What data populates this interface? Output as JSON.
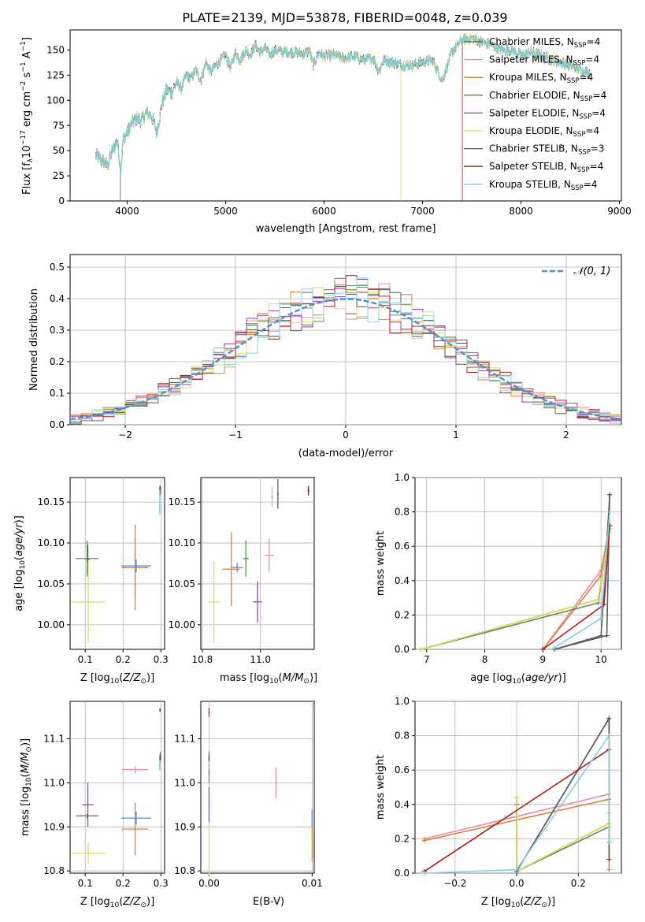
{
  "figure": {
    "title": "PLATE=2139, MJD=53878, FIBERID=0048, z=0.039"
  },
  "colors": [
    "#5c5c5c",
    "#e98aa8",
    "#d8802f",
    "#5e8a57",
    "#9f3ab6",
    "#d9e152",
    "#5a5a5a",
    "#b01c1c",
    "#7fd3df"
  ],
  "models": [
    {
      "name": "Chabrier MILES",
      "nssp": "4"
    },
    {
      "name": "Salpeter MILES",
      "nssp": "4"
    },
    {
      "name": "Kroupa MILES",
      "nssp": "4"
    },
    {
      "name": "Chabrier ELODIE",
      "nssp": "4"
    },
    {
      "name": "Salpeter ELODIE",
      "nssp": "4"
    },
    {
      "name": "Kroupa ELODIE",
      "nssp": "4"
    },
    {
      "name": "Chabrier STELIB",
      "nssp": "3"
    },
    {
      "name": "Salpeter STELIB",
      "nssp": "4"
    },
    {
      "name": "Kroupa STELIB",
      "nssp": "4"
    }
  ],
  "chart_data": [
    {
      "id": "spectrum",
      "type": "line",
      "xlabel": "wavelength [Angstrom, rest frame]",
      "ylabel": "Flux [f_λ 10^-17 erg cm^-2 s^-1 A^-1]",
      "xlim": [
        3420,
        9020
      ],
      "ylim": [
        0,
        170
      ],
      "xticks": [
        4000,
        5000,
        6000,
        7000,
        8000,
        9000
      ],
      "yticks": [
        0,
        25,
        50,
        75,
        100,
        125,
        150
      ],
      "grid": false,
      "legend": "upper right",
      "x": [
        3680,
        3750,
        3800,
        3850,
        3900,
        3935,
        3960,
        4000,
        4050,
        4100,
        4150,
        4200,
        4250,
        4300,
        4350,
        4400,
        4450,
        4500,
        4550,
        4600,
        4650,
        4700,
        4750,
        4800,
        4850,
        4900,
        4950,
        5000,
        5050,
        5100,
        5150,
        5200,
        5250,
        5300,
        5350,
        5400,
        5450,
        5500,
        5600,
        5700,
        5800,
        5850,
        5890,
        5950,
        6000,
        6100,
        6200,
        6300,
        6400,
        6500,
        6560,
        6600,
        6700,
        6800,
        6900,
        7000,
        7100,
        7200,
        7300,
        7400,
        7500,
        7600,
        7700,
        7800,
        7900,
        8000,
        8100,
        8200,
        8300,
        8400,
        8500,
        8600,
        8700
      ],
      "flux": [
        45,
        40,
        35,
        50,
        60,
        30,
        62,
        68,
        78,
        82,
        80,
        88,
        84,
        68,
        95,
        110,
        108,
        118,
        112,
        125,
        122,
        130,
        120,
        138,
        128,
        135,
        140,
        145,
        132,
        148,
        140,
        150,
        145,
        155,
        148,
        152,
        145,
        150,
        148,
        148,
        146,
        150,
        135,
        148,
        144,
        145,
        142,
        144,
        140,
        142,
        128,
        140,
        138,
        135,
        135,
        138,
        140,
        120,
        148,
        160,
        162,
        158,
        155,
        150,
        150,
        145,
        148,
        145,
        140,
        138,
        135,
        130,
        128
      ],
      "drops": [
        {
          "model": 6,
          "x": 3930
        },
        {
          "model": 5,
          "x": 6780
        },
        {
          "model": 7,
          "x": 7405
        }
      ]
    },
    {
      "id": "residual-histogram",
      "type": "step",
      "xlabel": "(data-model)/error",
      "ylabel": "Normed distribution",
      "xlim": [
        -2.5,
        2.5
      ],
      "ylim": [
        0,
        0.54
      ],
      "xticks": [
        -2,
        -1,
        0,
        1,
        2
      ],
      "yticks": [
        0.0,
        0.1,
        0.2,
        0.3,
        0.4,
        0.5
      ],
      "grid": true,
      "bin_width": 0.1,
      "reference_label": "N(0,1)",
      "reference_color": "#5b8bd6"
    },
    {
      "id": "age-vs-z",
      "type": "errorbar",
      "xlabel": "Z [log10(Z/Z⊙)]",
      "ylabel": "age [log10(age/yr)]",
      "xlim": [
        0.06,
        0.31
      ],
      "ylim": [
        9.97,
        10.18
      ],
      "xticks": [
        0.1,
        0.2,
        0.3
      ],
      "yticks": [
        10.0,
        10.05,
        10.1,
        10.15
      ],
      "grid": true,
      "points": [
        {
          "model": 0,
          "x": 0.298,
          "y": 10.165,
          "xe": 0.002,
          "ye": 0.005
        },
        {
          "model": 1,
          "x": 0.232,
          "y": 10.07,
          "xe": 0.035,
          "ye": 0.035
        },
        {
          "model": 2,
          "x": 0.232,
          "y": 10.07,
          "xe": 0.035,
          "ye": 0.052
        },
        {
          "model": 3,
          "x": 0.105,
          "y": 10.081,
          "xe": 0.03,
          "ye": 0.022
        },
        {
          "model": 4,
          "x": 0.107,
          "y": 10.08,
          "xe": 0.004,
          "ye": 0.018
        },
        {
          "model": 5,
          "x": 0.108,
          "y": 10.028,
          "xe": 0.045,
          "ye": 0.05
        },
        {
          "model": 6,
          "x": 0.299,
          "y": 10.163,
          "xe": 0.002,
          "ye": 0.004
        },
        {
          "model": 7,
          "x": 0.298,
          "y": 10.167,
          "xe": 0.002,
          "ye": 0.003
        },
        {
          "model": 8,
          "x": 0.297,
          "y": 10.15,
          "xe": 0.003,
          "ye": 0.015
        }
      ],
      "extra": [
        {
          "color": "#5b8bd6",
          "x": 0.235,
          "y": 10.072,
          "xe": 0.04,
          "ye": 0.008
        }
      ]
    },
    {
      "id": "age-vs-mass",
      "type": "errorbar",
      "xlabel": "mass [log10(M/M⊙)]",
      "xlim": [
        10.795,
        11.185
      ],
      "ylim": [
        9.97,
        10.18
      ],
      "xticks": [
        10.8,
        11.0
      ],
      "yticks": [
        10.0,
        10.05,
        10.1,
        10.15
      ],
      "grid": true,
      "points": [
        {
          "model": 0,
          "x": 11.165,
          "y": 10.163,
          "xe": 0.003,
          "ye": 0.005
        },
        {
          "model": 1,
          "x": 11.03,
          "y": 10.085,
          "xe": 0.015,
          "ye": 0.02
        },
        {
          "model": 2,
          "x": 10.9,
          "y": 10.068,
          "xe": 0.03,
          "ye": 0.045
        },
        {
          "model": 3,
          "x": 10.95,
          "y": 10.081,
          "xe": 0.01,
          "ye": 0.022
        },
        {
          "model": 4,
          "x": 10.99,
          "y": 10.028,
          "xe": 0.015,
          "ye": 0.025
        },
        {
          "model": 5,
          "x": 10.84,
          "y": 10.028,
          "xe": 0.02,
          "ye": 0.05
        },
        {
          "model": 6,
          "x": 11.06,
          "y": 10.16,
          "xe": 0.003,
          "ye": 0.018
        },
        {
          "model": 7,
          "x": 11.165,
          "y": 10.165,
          "xe": 0.003,
          "ye": 0.005
        },
        {
          "model": 8,
          "x": 11.04,
          "y": 10.157,
          "xe": 0.005,
          "ye": 0.012
        }
      ],
      "extra": [
        {
          "color": "#5b8bd6",
          "x": 10.92,
          "y": 10.07,
          "xe": 0.02,
          "ye": 0.006
        }
      ]
    },
    {
      "id": "weight-vs-age",
      "type": "line",
      "xlabel": "age [log10(age/yr)]",
      "ylabel": "mass weight",
      "xlim": [
        6.8,
        10.35
      ],
      "ylim": [
        0,
        1.0
      ],
      "xticks": [
        7,
        8,
        9,
        10
      ],
      "yticks": [
        0.0,
        0.2,
        0.4,
        0.6,
        0.8,
        1.0
      ],
      "grid": true,
      "series": [
        {
          "model": 0,
          "x": [
            9.2,
            10.0,
            10.15
          ],
          "y": [
            0.0,
            0.08,
            0.9
          ]
        },
        {
          "model": 1,
          "x": [
            9.0,
            10.0,
            10.15
          ],
          "y": [
            0.0,
            0.46,
            0.72
          ]
        },
        {
          "model": 2,
          "x": [
            9.0,
            10.0,
            10.15
          ],
          "y": [
            0.0,
            0.43,
            0.72
          ]
        },
        {
          "model": 3,
          "x": [
            6.9,
            9.95,
            10.15
          ],
          "y": [
            0.0,
            0.27,
            0.72
          ]
        },
        {
          "model": 4,
          "x": [
            6.9,
            9.95,
            10.15
          ],
          "y": [
            0.0,
            0.29,
            0.7
          ]
        },
        {
          "model": 5,
          "x": [
            6.9,
            9.95,
            10.15
          ],
          "y": [
            0.0,
            0.29,
            0.7
          ]
        },
        {
          "model": 6,
          "x": [
            9.2,
            10.1,
            10.15
          ],
          "y": [
            0.0,
            0.08,
            0.9
          ]
        },
        {
          "model": 7,
          "x": [
            9.0,
            10.05,
            10.15
          ],
          "y": [
            0.0,
            0.26,
            0.72
          ]
        },
        {
          "model": 8,
          "x": [
            9.2,
            10.0,
            10.15
          ],
          "y": [
            0.01,
            0.18,
            0.8
          ]
        }
      ]
    },
    {
      "id": "mass-vs-z",
      "type": "errorbar",
      "xlabel": "Z [log10(Z/Z⊙)]",
      "ylabel": "mass [log10(M/M⊙)]",
      "xlim": [
        0.06,
        0.31
      ],
      "ylim": [
        10.795,
        11.185
      ],
      "xticks": [
        0.1,
        0.2,
        0.3
      ],
      "yticks": [
        10.8,
        10.9,
        11.0,
        11.1
      ],
      "grid": true,
      "points": [
        {
          "model": 0,
          "x": 0.298,
          "y": 11.055,
          "xe": 0.003,
          "ye": 0.01
        },
        {
          "model": 1,
          "x": 0.232,
          "y": 11.03,
          "xe": 0.035,
          "ye": 0.008
        },
        {
          "model": 2,
          "x": 0.232,
          "y": 10.895,
          "xe": 0.035,
          "ye": 0.06
        },
        {
          "model": 3,
          "x": 0.105,
          "y": 10.925,
          "xe": 0.03,
          "ye": 0.005
        },
        {
          "model": 4,
          "x": 0.107,
          "y": 10.95,
          "xe": 0.015,
          "ye": 0.05
        },
        {
          "model": 5,
          "x": 0.108,
          "y": 10.84,
          "xe": 0.045,
          "ye": 0.025
        },
        {
          "model": 6,
          "x": 0.299,
          "y": 11.06,
          "xe": 0.002,
          "ye": 0.01
        },
        {
          "model": 7,
          "x": 0.298,
          "y": 11.165,
          "xe": 0.002,
          "ye": 0.004
        },
        {
          "model": 8,
          "x": 0.297,
          "y": 11.04,
          "xe": 0.003,
          "ye": 0.012
        }
      ],
      "extra": [
        {
          "color": "#5b8bd6",
          "x": 0.235,
          "y": 10.92,
          "xe": 0.04,
          "ye": 0.015
        }
      ]
    },
    {
      "id": "mass-vs-ebv",
      "type": "errorbar",
      "xlabel": "E(B-V)",
      "xlim": [
        -0.0008,
        0.0102
      ],
      "ylim": [
        10.795,
        11.185
      ],
      "xticks": [
        0.0,
        0.01
      ],
      "yticks": [
        10.8,
        10.9,
        11.0,
        11.1
      ],
      "grid": true,
      "points": [
        {
          "model": 0,
          "x": 0.0,
          "y": 11.04,
          "xe": 5e-05,
          "ye": 0.02
        },
        {
          "model": 1,
          "x": 0.0065,
          "y": 11.0,
          "xe": 5e-05,
          "ye": 0.035
        },
        {
          "model": 2,
          "x": 0.01,
          "y": 10.88,
          "xe": 5e-05,
          "ye": 0.06
        },
        {
          "model": 3,
          "x": 0.0,
          "y": 11.03,
          "xe": 5e-05,
          "ye": 0.03
        },
        {
          "model": 4,
          "x": 0.0,
          "y": 10.95,
          "xe": 5e-05,
          "ye": 0.04
        },
        {
          "model": 5,
          "x": 0.0,
          "y": 10.85,
          "xe": 5e-05,
          "ye": 0.06
        },
        {
          "model": 6,
          "x": 0.0,
          "y": 11.06,
          "xe": 5e-05,
          "ye": 0.01
        },
        {
          "model": 7,
          "x": 0.0,
          "y": 11.16,
          "xe": 5e-05,
          "ye": 0.01
        },
        {
          "model": 8,
          "x": 0.0,
          "y": 11.04,
          "xe": 5e-05,
          "ye": 0.01
        }
      ],
      "extra": [
        {
          "color": "#5b8bd6",
          "x": 0.01,
          "y": 10.92,
          "xe": 5e-05,
          "ye": 0.02
        }
      ]
    },
    {
      "id": "weight-vs-z",
      "type": "line",
      "xlabel": "Z [log10(Z/Z⊙)]",
      "ylabel": "mass weight",
      "xlim": [
        -0.33,
        0.34
      ],
      "ylim": [
        0,
        1.0
      ],
      "xticks": [
        -0.2,
        0.0,
        0.2
      ],
      "yticks": [
        0.0,
        0.2,
        0.4,
        0.6,
        0.8,
        1.0
      ],
      "grid": true,
      "series": [
        {
          "model": 0,
          "x": [
            0.0,
            0.3,
            0.3
          ],
          "y": [
            0.01,
            0.9,
            0.08
          ]
        },
        {
          "model": 1,
          "x": [
            -0.3,
            0.3,
            0.3
          ],
          "y": [
            0.2,
            0.46,
            0.35
          ]
        },
        {
          "model": 2,
          "x": [
            -0.3,
            0.3,
            0.3
          ],
          "y": [
            0.19,
            0.43,
            0.02
          ]
        },
        {
          "model": 3,
          "x": [
            0.0,
            0.0,
            0.3,
            0.3
          ],
          "y": [
            0.44,
            0.01,
            0.27,
            0.18
          ]
        },
        {
          "model": 4,
          "x": [
            0.0,
            0.0,
            0.3
          ],
          "y": [
            0.4,
            0.01,
            0.29
          ]
        },
        {
          "model": 5,
          "x": [
            0.0,
            0.0,
            0.3,
            0.3
          ],
          "y": [
            0.44,
            0.01,
            0.29,
            0.27
          ]
        },
        {
          "model": 6,
          "x": [
            0.0,
            0.3,
            0.3
          ],
          "y": [
            0.01,
            0.9,
            0.08
          ]
        },
        {
          "model": 7,
          "x": [
            -0.3,
            0.3
          ],
          "y": [
            0.01,
            0.72
          ]
        },
        {
          "model": 8,
          "x": [
            -0.3,
            0.0,
            0.3,
            0.3
          ],
          "y": [
            0.0,
            0.02,
            0.8,
            0.18
          ]
        }
      ]
    }
  ]
}
